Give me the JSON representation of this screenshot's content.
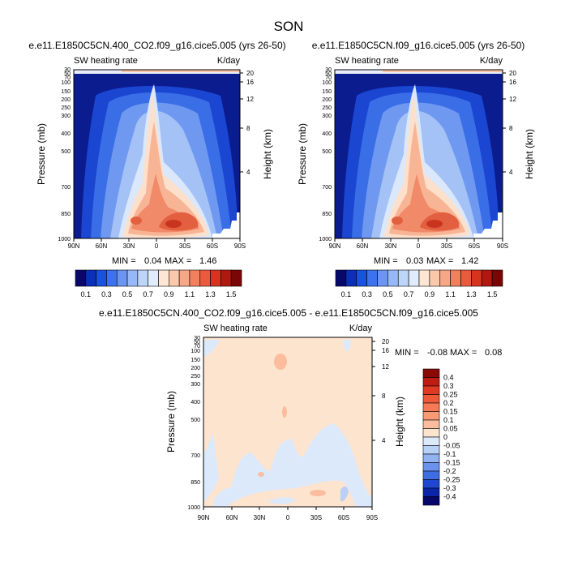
{
  "page": {
    "title": "SON"
  },
  "chart_data": [
    {
      "type": "heatmap",
      "title": "e.e11.E1850C5CN.400_CO2.f09_g16.cice5.005 (yrs 26-50)",
      "left_label": "SW heating rate",
      "right_label": "K/day",
      "ylabel": "Pressure (mb)",
      "ylabel_right": "Height (km)",
      "x_ticks": [
        "90N",
        "60N",
        "30N",
        "0",
        "30S",
        "60S",
        "90S"
      ],
      "y_ticks": [
        "30",
        "50",
        "70",
        "100",
        "150",
        "200",
        "250",
        "300",
        "400",
        "500",
        "700",
        "850",
        "1000"
      ],
      "height_ticks": [
        "20",
        "16",
        "12",
        "8",
        "4"
      ],
      "stats": {
        "min_label": "MIN =",
        "min": "0.04",
        "max_label": "MAX =",
        "max": "1.46"
      },
      "colorbar": {
        "levels": [
          "0.1",
          "0.3",
          "0.5",
          "0.7",
          "0.9",
          "1.1",
          "1.3",
          "1.5"
        ],
        "colors": [
          "#08086b",
          "#0a2fb8",
          "#1a52e0",
          "#3d72ee",
          "#6a95f2",
          "#96b8f6",
          "#bdd5f9",
          "#e0ecfb",
          "#fde6d4",
          "#fbc8ac",
          "#f7a686",
          "#f2805f",
          "#ea5a3c",
          "#d6341f",
          "#b01810",
          "#7a0705"
        ]
      }
    },
    {
      "type": "heatmap",
      "title": "e.e11.E1850C5CN.f09_g16.cice5.005 (yrs 26-50)",
      "left_label": "SW heating rate",
      "right_label": "K/day",
      "ylabel": "Pressure (mb)",
      "ylabel_right": "Height (km)",
      "x_ticks": [
        "90N",
        "60N",
        "30N",
        "0",
        "30S",
        "60S",
        "90S"
      ],
      "y_ticks": [
        "30",
        "50",
        "70",
        "100",
        "150",
        "200",
        "250",
        "300",
        "400",
        "500",
        "700",
        "850",
        "1000"
      ],
      "height_ticks": [
        "20",
        "16",
        "12",
        "8",
        "4"
      ],
      "stats": {
        "min_label": "MIN =",
        "min": "0.03",
        "max_label": "MAX =",
        "max": "1.42"
      },
      "colorbar": {
        "levels": [
          "0.1",
          "0.3",
          "0.5",
          "0.7",
          "0.9",
          "1.1",
          "1.3",
          "1.5"
        ],
        "colors": [
          "#08086b",
          "#0a2fb8",
          "#1a52e0",
          "#3d72ee",
          "#6a95f2",
          "#96b8f6",
          "#bdd5f9",
          "#e0ecfb",
          "#fde6d4",
          "#fbc8ac",
          "#f7a686",
          "#f2805f",
          "#ea5a3c",
          "#d6341f",
          "#b01810",
          "#7a0705"
        ]
      }
    },
    {
      "type": "heatmap",
      "title": "e.e11.E1850C5CN.400_CO2.f09_g16.cice5.005 - e.e11.E1850C5CN.f09_g16.cice5.005",
      "left_label": "SW heating rate",
      "right_label": "K/day",
      "ylabel": "Pressure (mb)",
      "ylabel_right": "Height (km)",
      "x_ticks": [
        "90N",
        "60N",
        "30N",
        "0",
        "30S",
        "60S",
        "90S"
      ],
      "y_ticks": [
        "30",
        "50",
        "70",
        "100",
        "150",
        "200",
        "250",
        "300",
        "400",
        "500",
        "700",
        "850",
        "1000"
      ],
      "height_ticks": [
        "20",
        "16",
        "12",
        "8",
        "4"
      ],
      "stats": {
        "min_label": "MIN =",
        "min": "-0.08",
        "max_label": "MAX =",
        "max": "0.08"
      },
      "colorbar": {
        "levels": [
          "0.4",
          "0.3",
          "0.25",
          "0.2",
          "0.15",
          "0.1",
          "0.05",
          "0",
          "-0.05",
          "-0.1",
          "-0.15",
          "-0.2",
          "-0.25",
          "-0.3",
          "-0.4"
        ],
        "colors": [
          "#8a0a06",
          "#c01d12",
          "#e03a22",
          "#ee5a38",
          "#f57a55",
          "#f89a76",
          "#fbbd9e",
          "#fde4cf",
          "#dce9fb",
          "#b9d0f7",
          "#92b2f2",
          "#6b92ec",
          "#3f6de2",
          "#1e48cf",
          "#0b25a8",
          "#06066b"
        ]
      }
    }
  ]
}
